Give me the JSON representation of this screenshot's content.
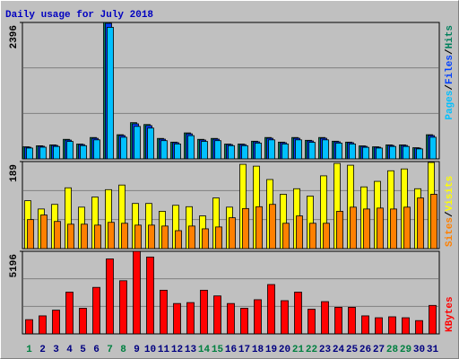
{
  "chart_data": {
    "type": "bar",
    "title": "Daily usage for July 2018",
    "categories": [
      "1",
      "2",
      "3",
      "4",
      "5",
      "6",
      "7",
      "8",
      "9",
      "10",
      "11",
      "12",
      "13",
      "14",
      "15",
      "16",
      "17",
      "18",
      "19",
      "20",
      "21",
      "22",
      "23",
      "24",
      "25",
      "26",
      "27",
      "28",
      "29",
      "30",
      "31"
    ],
    "category_colors": [
      "#008040",
      "#000080",
      "#000080",
      "#000080",
      "#000080",
      "#000080",
      "#008040",
      "#008040",
      "#000080",
      "#000080",
      "#000080",
      "#000080",
      "#000080",
      "#008040",
      "#008040",
      "#000080",
      "#000080",
      "#000080",
      "#000080",
      "#000080",
      "#008040",
      "#008040",
      "#000080",
      "#000080",
      "#000080",
      "#000080",
      "#000080",
      "#008040",
      "#008040",
      "#000080",
      "#000080"
    ],
    "legend_separator": "/",
    "panels": [
      {
        "ylim": [
          0,
          2396
        ],
        "yticks": [
          2396
        ],
        "series": [
          {
            "name": "Hits",
            "color": "#00805c",
            "values": [
              212,
              230,
              245,
              343,
              260,
              375,
              2396,
              424,
              636,
              603,
              359,
              294,
              456,
              343,
              359,
              260,
              260,
              310,
              375,
              294,
              375,
              326,
              375,
              310,
              294,
              228,
              212,
              245,
              245,
              196,
              424
            ]
          },
          {
            "name": "Files",
            "color": "#0040ff",
            "values": [
              205,
              222,
              236,
              330,
              251,
              361,
              2380,
              410,
              615,
              584,
              346,
              284,
              440,
              331,
              346,
              251,
              251,
              299,
              362,
              284,
              362,
              315,
              362,
              299,
              284,
              220,
              205,
              236,
              236,
              189,
              410
            ]
          },
          {
            "name": "Pages",
            "color": "#00c0ff",
            "values": [
              190,
              205,
              218,
              306,
              232,
              334,
              2310,
              380,
              570,
              541,
              320,
              262,
              408,
              306,
              320,
              232,
              232,
              277,
              334,
              262,
              334,
              291,
              334,
              277,
              262,
              203,
              190,
              218,
              218,
              175,
              380
            ]
          }
        ]
      },
      {
        "ylim": [
          0,
          189
        ],
        "yticks": [
          189
        ],
        "series": [
          {
            "name": "Visits",
            "color": "#ffff00",
            "values": [
              104,
              86,
              96,
              132,
              90,
              112,
              128,
              138,
              98,
              98,
              81,
              94,
              91,
              71,
              110,
              90,
              183,
              179,
              150,
              118,
              130,
              114,
              158,
              185,
              181,
              134,
              146,
              169,
              173,
              130,
              187
            ]
          },
          {
            "name": "Sites",
            "color": "#ff8000",
            "values": [
              63,
              73,
              59,
              53,
              53,
              51,
              57,
              55,
              51,
              51,
              49,
              39,
              49,
              43,
              47,
              67,
              87,
              91,
              96,
              55,
              71,
              55,
              55,
              81,
              90,
              86,
              88,
              86,
              90,
              110,
              118
            ]
          }
        ]
      },
      {
        "ylim": [
          0,
          5196
        ],
        "yticks": [
          5196
        ],
        "series": [
          {
            "name": "KBytes",
            "color": "#ff0000",
            "values": [
              896,
              1134,
              1493,
              2627,
              1612,
              2926,
              4717,
              3344,
              5196,
              4836,
              2747,
              1911,
              1970,
              2747,
              2389,
              1911,
              1612,
              2150,
              3105,
              2090,
              2627,
              1552,
              2030,
              1672,
              1672,
              1134,
              1015,
              1075,
              1015,
              836,
              1791
            ]
          }
        ]
      }
    ]
  }
}
